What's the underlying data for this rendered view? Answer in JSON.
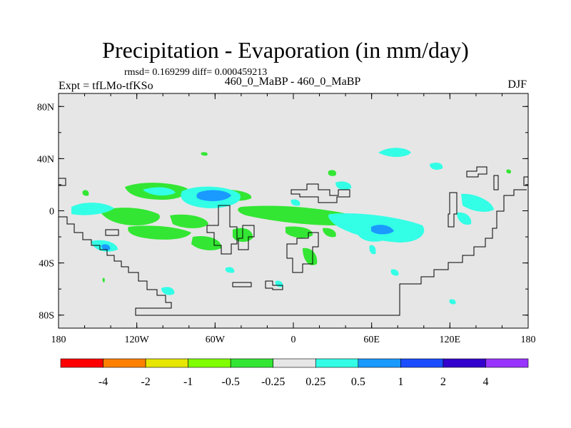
{
  "chart_data": {
    "type": "contour-map",
    "title": "Precipitation - Evaporation (in mm/day)",
    "stats_line": "rmsd= 0.169299 diff= 0.000459213",
    "left_label": "Expt = tfLMo-tfKSo",
    "center_label": "460_0_MaBP - 460_0_MaBP",
    "right_label": "DJF",
    "x_ticks": [
      "180",
      "120W",
      "60W",
      "0",
      "60E",
      "120E",
      "180"
    ],
    "y_ticks": [
      "80N",
      "40N",
      "0",
      "40S",
      "80S"
    ],
    "x_range": [
      -180,
      180
    ],
    "y_range": [
      -90,
      90
    ],
    "colorbar": {
      "levels": [
        "-4",
        "-2",
        "-1",
        "-0.5",
        "-0.25",
        "0.25",
        "0.5",
        "1",
        "2",
        "4"
      ],
      "colors": [
        "#ff0000",
        "#ff8000",
        "#e6e600",
        "#80ff00",
        "#33e633",
        "#e6e6e6",
        "#33ffe6",
        "#1a99ff",
        "#1a4dff",
        "#3300cc",
        "#9933ff"
      ]
    },
    "colors": {
      "background": "#e6e6e6",
      "positive_light": "#33ffe6",
      "positive_mid": "#1a99ff",
      "negative_light": "#33e633",
      "coast": "#000000"
    }
  }
}
